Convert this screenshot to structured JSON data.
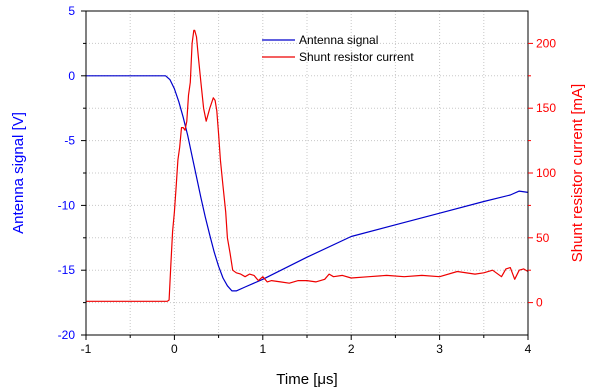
{
  "chart_data": {
    "type": "line",
    "xlabel": "Time [μs]",
    "ylabel_left": "Antenna signal [V]",
    "ylabel_right": "Shunt resistor current [mA]",
    "xlim": [
      -1,
      4
    ],
    "ylim_left": [
      -20,
      5
    ],
    "ylim_right": [
      -25,
      225
    ],
    "x_ticks": [
      -1,
      0,
      1,
      2,
      3,
      4
    ],
    "x_tick_labels": [
      "-1",
      "0",
      "1",
      "2",
      "3",
      "4"
    ],
    "y_left_ticks": [
      -20,
      -15,
      -10,
      -5,
      0,
      5
    ],
    "y_left_tick_labels": [
      "-20",
      "-15",
      "-10",
      "-5",
      "0",
      "5"
    ],
    "y_right_ticks": [
      0,
      50,
      100,
      150,
      200
    ],
    "y_right_tick_labels": [
      "0",
      "50",
      "100",
      "150",
      "200"
    ],
    "grid": true,
    "legend_position": "top-center",
    "colors": {
      "left_axis": "#0000ff",
      "right_axis": "#ff0000",
      "grid": "#c8c8c8",
      "frame": "#000000"
    },
    "series": [
      {
        "name": "Antenna signal",
        "axis": "left",
        "color": "#0000cc",
        "x": [
          -1.0,
          -0.1,
          -0.05,
          0.0,
          0.05,
          0.1,
          0.15,
          0.2,
          0.25,
          0.3,
          0.35,
          0.4,
          0.45,
          0.5,
          0.55,
          0.6,
          0.65,
          0.7,
          0.8,
          1.0,
          1.5,
          2.0,
          2.5,
          3.0,
          3.5,
          3.8,
          3.9,
          4.0
        ],
        "y": [
          0.0,
          0.0,
          -0.3,
          -1.0,
          -2.0,
          -3.2,
          -4.6,
          -6.2,
          -7.8,
          -9.4,
          -10.9,
          -12.3,
          -13.6,
          -14.7,
          -15.6,
          -16.2,
          -16.6,
          -16.6,
          -16.3,
          -15.7,
          -14.0,
          -12.4,
          -11.5,
          -10.6,
          -9.7,
          -9.2,
          -8.9,
          -9.0
        ]
      },
      {
        "name": "Shunt resistor current",
        "axis": "right",
        "color": "#ee0000",
        "x": [
          -1.0,
          -0.08,
          -0.06,
          -0.04,
          -0.02,
          0.0,
          0.02,
          0.04,
          0.06,
          0.08,
          0.1,
          0.12,
          0.14,
          0.16,
          0.18,
          0.2,
          0.22,
          0.23,
          0.25,
          0.27,
          0.3,
          0.33,
          0.36,
          0.4,
          0.44,
          0.46,
          0.48,
          0.5,
          0.52,
          0.55,
          0.58,
          0.6,
          0.63,
          0.66,
          0.7,
          0.75,
          0.8,
          0.85,
          0.9,
          0.95,
          1.0,
          1.05,
          1.1,
          1.2,
          1.3,
          1.4,
          1.5,
          1.6,
          1.7,
          1.75,
          1.8,
          1.9,
          2.0,
          2.2,
          2.4,
          2.6,
          2.8,
          3.0,
          3.2,
          3.4,
          3.5,
          3.6,
          3.7,
          3.75,
          3.8,
          3.85,
          3.9,
          3.95,
          4.0
        ],
        "y": [
          1,
          1,
          2,
          30,
          55,
          70,
          90,
          110,
          120,
          135,
          135,
          133,
          140,
          160,
          170,
          200,
          210,
          210,
          205,
          190,
          170,
          150,
          140,
          150,
          158,
          156,
          148,
          130,
          110,
          90,
          70,
          50,
          38,
          25,
          23,
          22,
          20,
          22,
          21,
          17,
          20,
          16,
          17,
          16,
          15,
          17,
          17,
          16,
          18,
          22,
          20,
          21,
          19,
          20,
          21,
          20,
          21,
          20,
          24,
          22,
          23,
          25,
          20,
          26,
          27,
          18,
          25,
          26,
          24
        ]
      }
    ]
  }
}
